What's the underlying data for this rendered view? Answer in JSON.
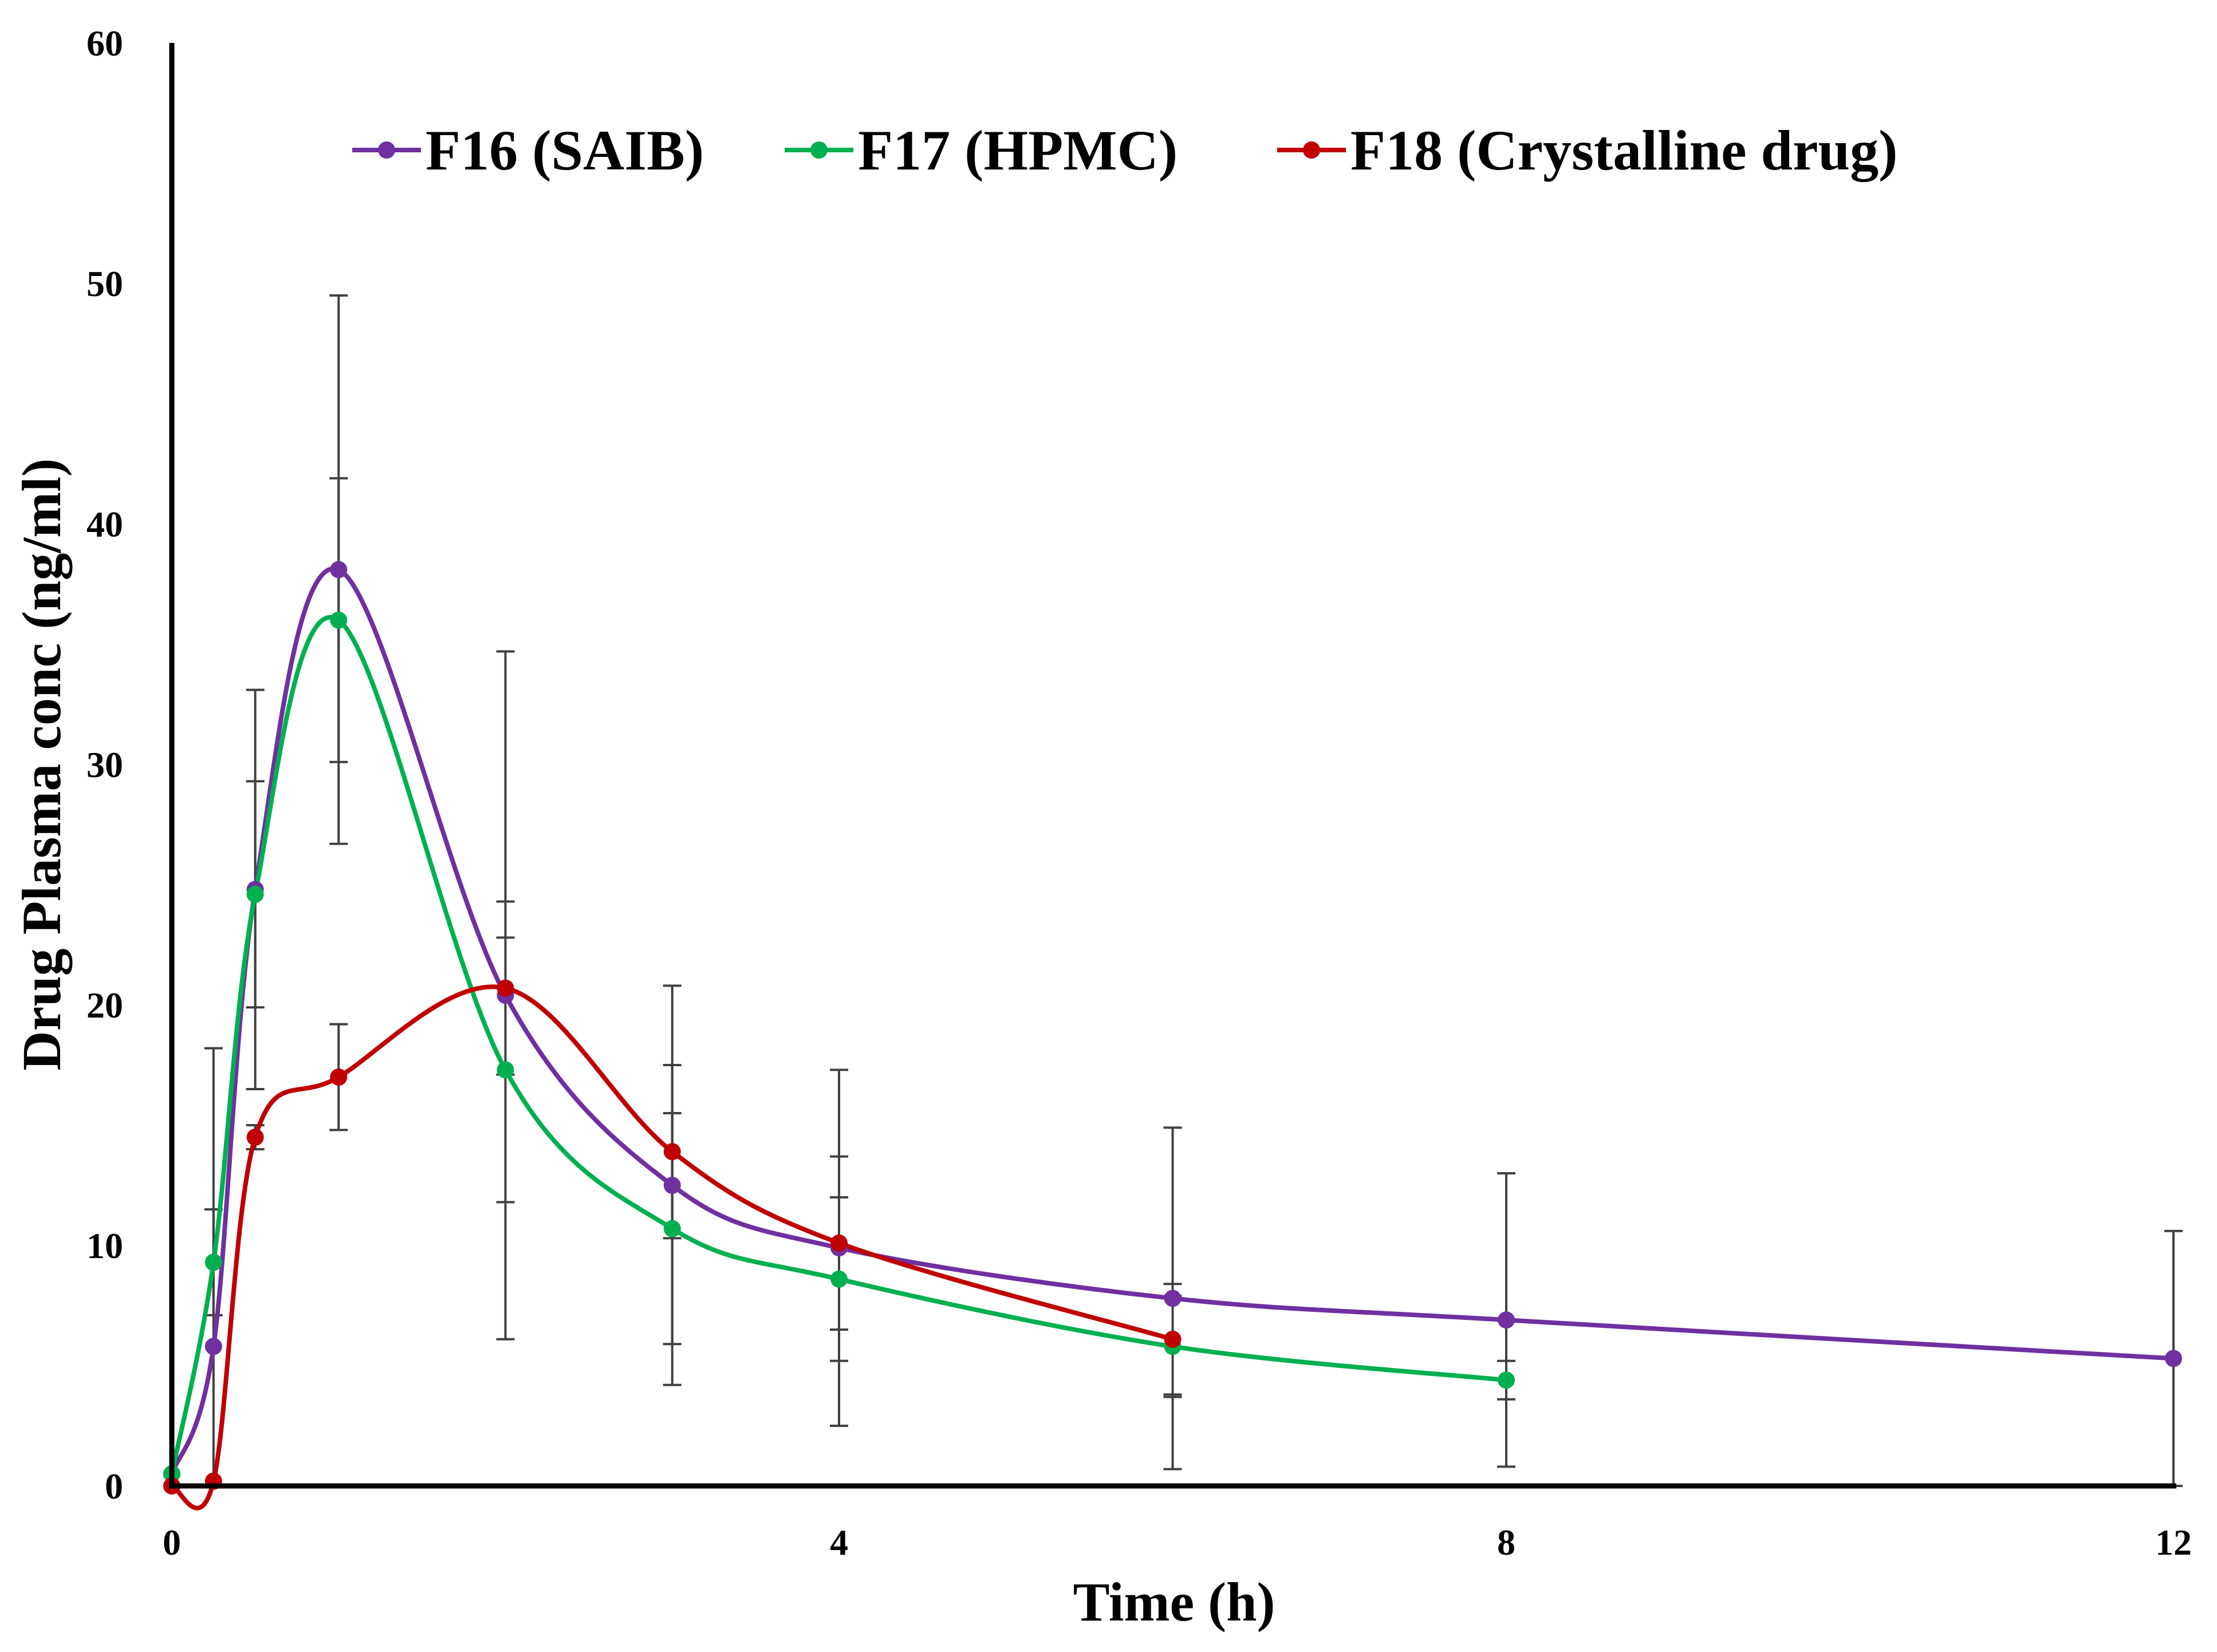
{
  "chart_data": {
    "type": "line",
    "title": "",
    "xlabel": "Time (h)",
    "ylabel": "Drug Plasma conc (ng/ml)",
    "xlim": [
      0,
      12
    ],
    "ylim": [
      0,
      60
    ],
    "xticks": [
      0,
      4,
      8,
      12
    ],
    "yticks": [
      0,
      10,
      20,
      30,
      40,
      50,
      60
    ],
    "grid": false,
    "legend_position": "top",
    "series": [
      {
        "name": "F16 (SAIB)",
        "color": "#7030a0",
        "x": [
          0,
          0.25,
          0.5,
          1,
          2,
          3,
          4,
          6,
          8,
          12
        ],
        "y": [
          0.5,
          5.8,
          24.8,
          38.1,
          20.4,
          12.5,
          9.9,
          7.8,
          6.9,
          5.3
        ],
        "err": [
          0,
          12.4,
          8.3,
          11.4,
          14.3,
          8.3,
          7.4,
          7.1,
          6.1,
          5.3
        ]
      },
      {
        "name": "F17 (HPMC)",
        "color": "#00b050",
        "x": [
          0,
          0.25,
          0.5,
          1,
          2,
          3,
          4,
          6,
          8
        ],
        "y": [
          0.5,
          9.3,
          24.6,
          36.0,
          17.3,
          10.7,
          8.6,
          5.8,
          4.4
        ],
        "err": [
          0,
          2.2,
          4.7,
          5.9,
          5.5,
          4.8,
          3.4,
          2.1,
          0.8
        ]
      },
      {
        "name": "F18 (Crystalline drug)",
        "color": "#c00000",
        "x": [
          0,
          0.25,
          0.5,
          1,
          2,
          3,
          4,
          6
        ],
        "y": [
          0,
          0.2,
          14.5,
          17.0,
          20.7,
          13.9,
          10.1,
          6.1
        ],
        "err": [
          0,
          0,
          0.5,
          2.2,
          3.6,
          3.6,
          3.6,
          2.3
        ]
      }
    ]
  }
}
